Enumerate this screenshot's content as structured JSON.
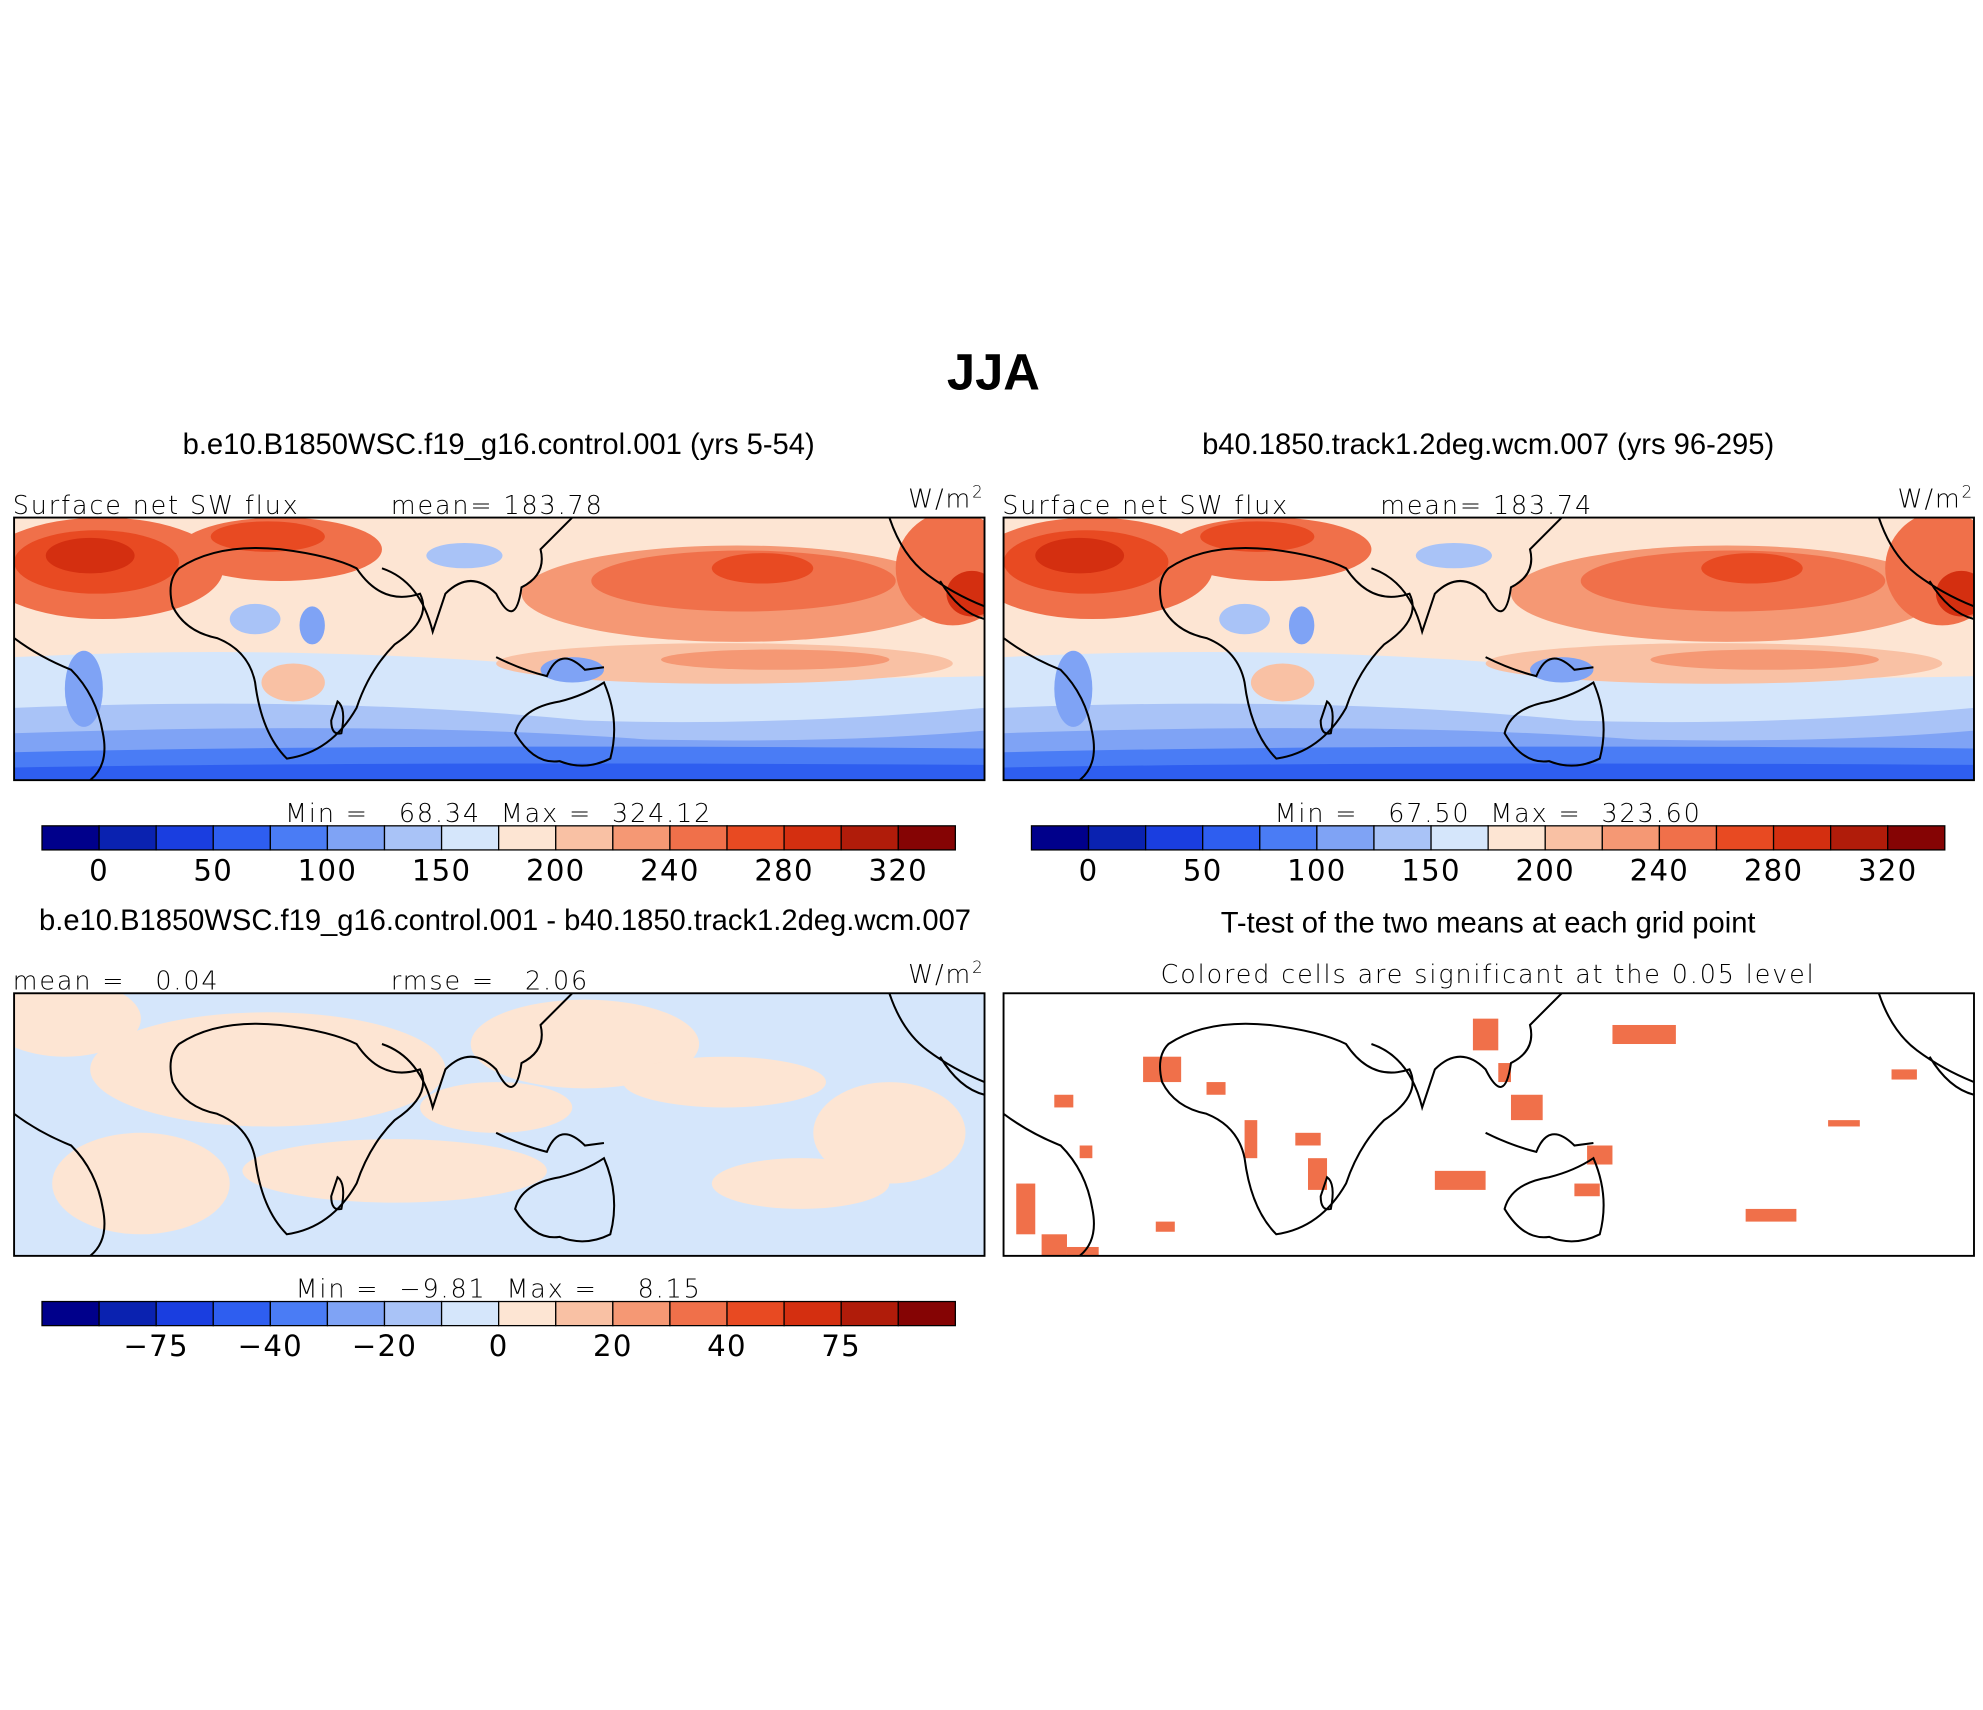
{
  "title": "JJA",
  "palette": [
    "#00008b",
    "#0a22b0",
    "#1a3ee0",
    "#2e5ef0",
    "#4a7cf5",
    "#7fa3f5",
    "#a9c3f7",
    "#d5e6fb",
    "#fde5d3",
    "#f9c1a4",
    "#f59874",
    "#f0704a",
    "#e84a22",
    "#d42f10",
    "#b01c0a",
    "#850404"
  ],
  "panels": [
    {
      "title": "b.e10.B1850WSC.f19_g16.control.001 (yrs 5-54)",
      "left": "Surface net SW flux",
      "center": "mean= 183.78",
      "units": "W/m",
      "units_power": "2",
      "stats": "Min =   68.34  Max =  324.12"
    },
    {
      "title": "b40.1850.track1.2deg.wcm.007 (yrs 96-295)",
      "left": "Surface net SW flux",
      "center": "mean= 183.74",
      "units": "W/m",
      "units_power": "2",
      "stats": "Min =   67.50  Max =  323.60"
    },
    {
      "title": "b.e10.B1850WSC.f19_g16.control.001 - b40.1850.track1.2deg.wcm.007",
      "left": "mean =   0.04",
      "center": "rmse =   2.06",
      "units": "W/m",
      "units_power": "2",
      "stats": "Min =  −9.81  Max =    8.15"
    },
    {
      "title": "T-test of the two means at each grid point",
      "subtitle": "Colored cells are significant at the 0.05 level"
    }
  ],
  "colorbars": [
    {
      "labels": [
        "0",
        null,
        "50",
        null,
        "100",
        null,
        "150",
        null,
        "200",
        null,
        "240",
        null,
        "280",
        null,
        "320"
      ]
    },
    {
      "labels": [
        "0",
        null,
        "50",
        null,
        "100",
        null,
        "150",
        null,
        "200",
        null,
        "240",
        null,
        "280",
        null,
        "320"
      ]
    },
    {
      "labels": [
        null,
        "−75",
        null,
        "−40",
        null,
        "−20",
        null,
        "0",
        null,
        "20",
        null,
        "40",
        null,
        "75",
        null
      ]
    }
  ]
}
